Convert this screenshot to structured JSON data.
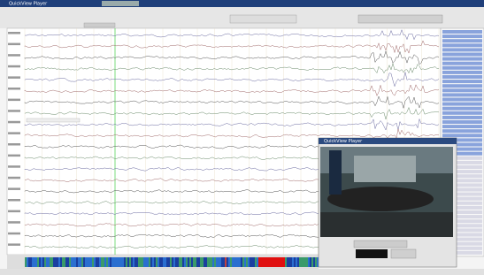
{
  "window": {
    "title": "QuickView Player"
  },
  "video_window": {
    "title": "QuickView Player"
  }
}
